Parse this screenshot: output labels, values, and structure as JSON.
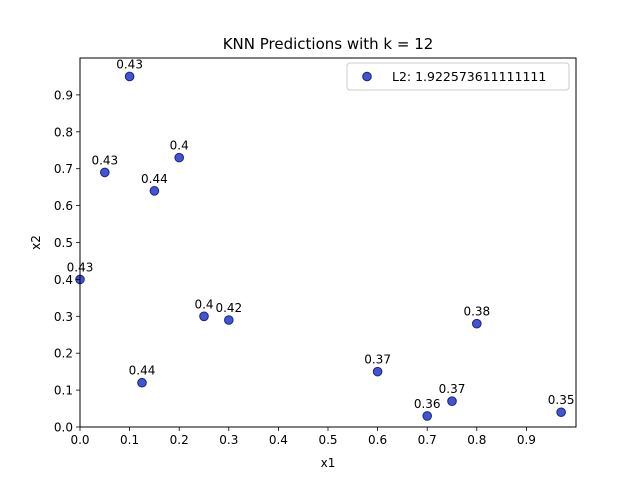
{
  "chart_data": {
    "type": "scatter",
    "title": "KNN Predictions with k = 12",
    "xlabel": "x1",
    "ylabel": "x2",
    "xlim": [
      0.0,
      1.0
    ],
    "ylim": [
      0.0,
      1.0
    ],
    "x_ticks": [
      "0.0",
      "0.1",
      "0.2",
      "0.3",
      "0.4",
      "0.5",
      "0.6",
      "0.7",
      "0.8",
      "0.9"
    ],
    "y_ticks": [
      "0.0",
      "0.1",
      "0.2",
      "0.3",
      "0.4",
      "0.5",
      "0.6",
      "0.7",
      "0.8",
      "0.9"
    ],
    "grid": false,
    "legend_position": "top-right",
    "series": [
      {
        "name": "L2: 1.922573611111111",
        "marker_fill": "#4353d6",
        "marker_edge": "#1a237e",
        "points": [
          {
            "x": 0.1,
            "y": 0.95,
            "label": "0.43"
          },
          {
            "x": 0.05,
            "y": 0.69,
            "label": "0.43"
          },
          {
            "x": 0.2,
            "y": 0.73,
            "label": "0.4"
          },
          {
            "x": 0.15,
            "y": 0.64,
            "label": "0.44"
          },
          {
            "x": 0.0,
            "y": 0.4,
            "label": "0.43"
          },
          {
            "x": 0.25,
            "y": 0.3,
            "label": "0.4"
          },
          {
            "x": 0.3,
            "y": 0.29,
            "label": "0.42"
          },
          {
            "x": 0.125,
            "y": 0.12,
            "label": "0.44"
          },
          {
            "x": 0.6,
            "y": 0.15,
            "label": "0.37"
          },
          {
            "x": 0.8,
            "y": 0.28,
            "label": "0.38"
          },
          {
            "x": 0.7,
            "y": 0.03,
            "label": "0.36"
          },
          {
            "x": 0.75,
            "y": 0.07,
            "label": "0.37"
          },
          {
            "x": 0.97,
            "y": 0.04,
            "label": "0.35"
          }
        ]
      }
    ]
  }
}
